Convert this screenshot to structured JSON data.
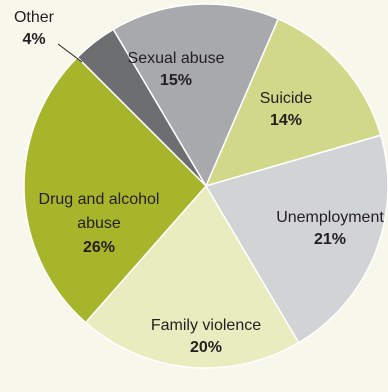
{
  "chart_data": {
    "type": "pie",
    "title": "",
    "slices": [
      {
        "label": "Other",
        "value": 4,
        "value_label": "4%",
        "color": "#6d6e70"
      },
      {
        "label": "Sexual abuse",
        "value": 15,
        "value_label": "15%",
        "color": "#a7a9ac"
      },
      {
        "label": "Suicide",
        "value": 14,
        "value_label": "14%",
        "color": "#d2d88a"
      },
      {
        "label": "Unemployment",
        "value": 21,
        "value_label": "21%",
        "color": "#d1d3d4"
      },
      {
        "label": "Family violence",
        "value": 20,
        "value_label": "20%",
        "color": "#e9ecbf"
      },
      {
        "label": "Drug and alcohol abuse",
        "label_lines": [
          "Drug and alcohol",
          "abuse"
        ],
        "value": 26,
        "value_label": "26%",
        "color": "#a7b52b"
      }
    ]
  }
}
